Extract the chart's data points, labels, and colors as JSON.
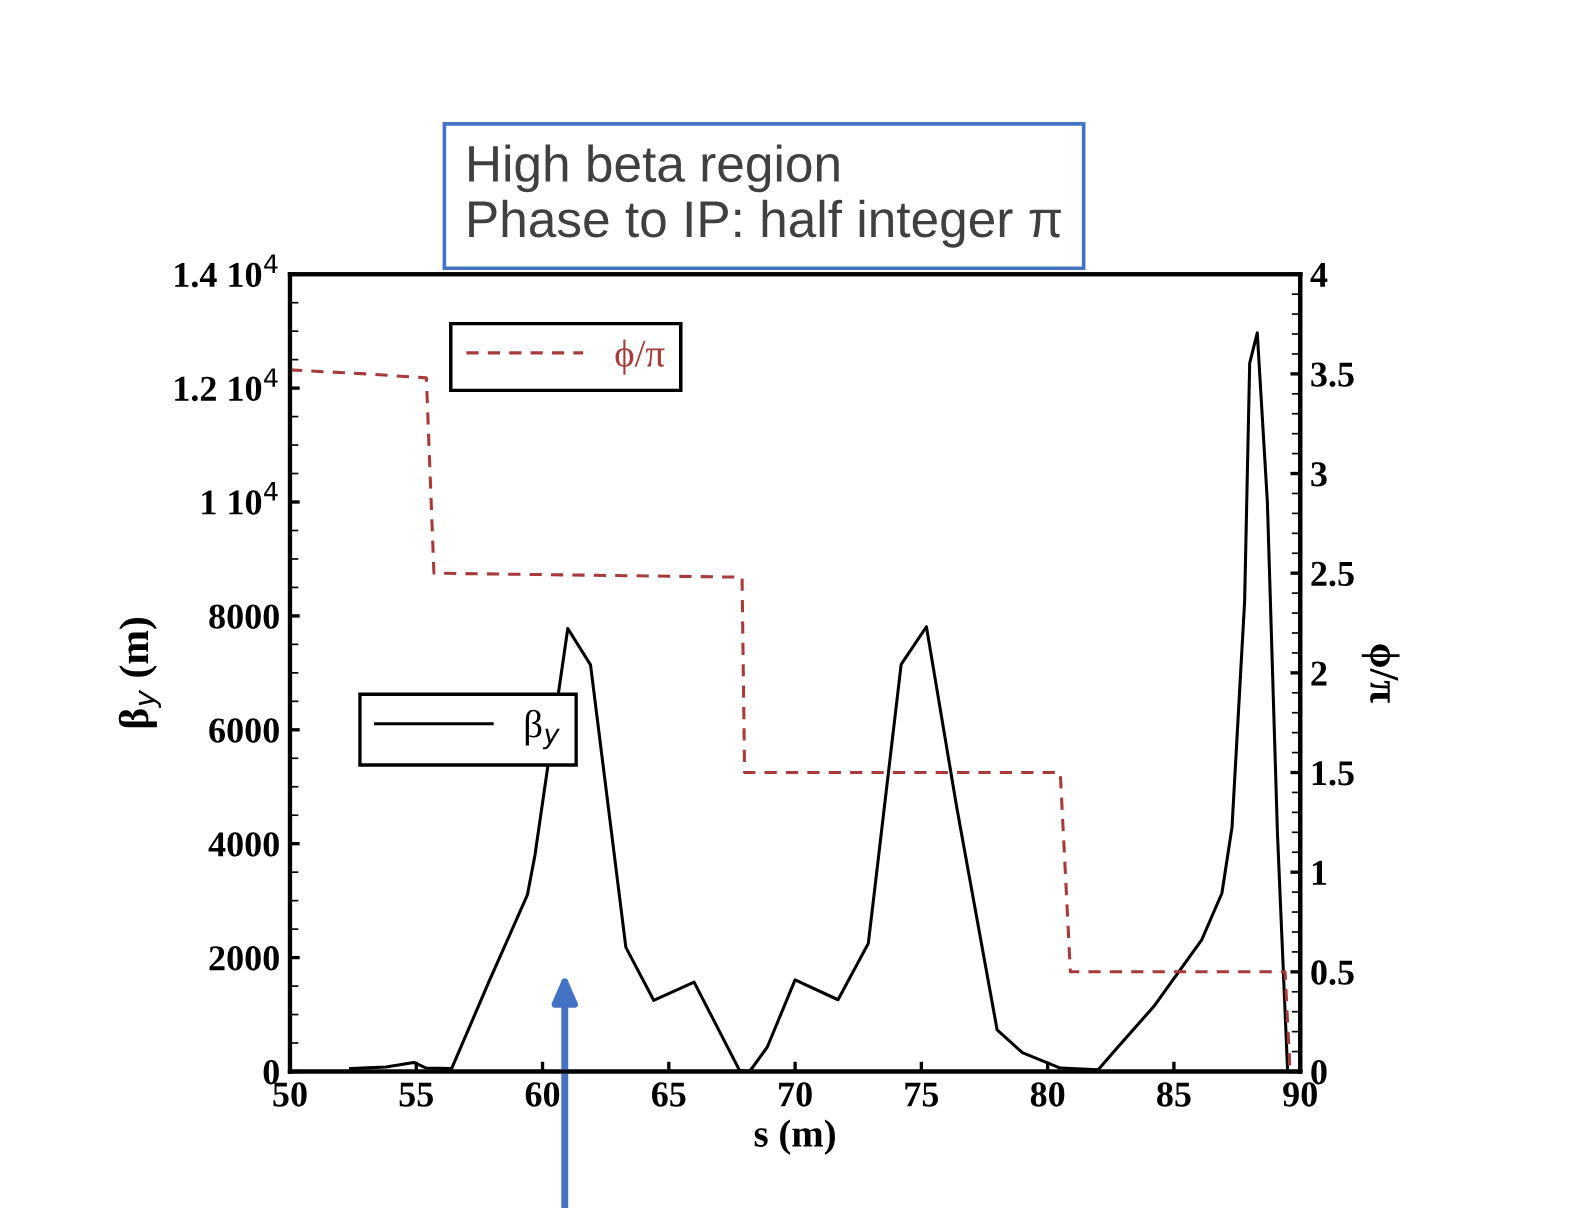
{
  "chart_data": {
    "type": "line",
    "xlabel": "s (m)",
    "ylabel": "β$_{y}$ (m)",
    "y2label": "ϕ/π",
    "xlim": [
      50,
      90
    ],
    "xticks": [
      50,
      55,
      60,
      65,
      70,
      75,
      80,
      85,
      90
    ],
    "ylim": [
      0,
      14000
    ],
    "yticks": [
      0,
      2000,
      4000,
      6000,
      8000,
      {
        "value": 10000,
        "label": "1 10$^{4}$"
      },
      {
        "value": 12000,
        "label": "1.2 10$^{4}$"
      },
      {
        "value": 14000,
        "label": "1.4 10$^{4}$"
      }
    ],
    "y2lim": [
      0,
      4
    ],
    "y2ticks": [
      0,
      0.5,
      1,
      1.5,
      2,
      2.5,
      3,
      3.5,
      4
    ],
    "grid": false,
    "legend": "left",
    "marker": "none",
    "series": [
      {
        "name": "β$_{y}$",
        "color": "#000000",
        "line_style": "solid",
        "x": [
          52.4,
          53.8,
          54.9,
          55.4,
          56.4,
          57.9,
          59.4,
          59.7,
          61.0,
          61.9,
          63.3,
          64.4,
          66.0,
          67.8,
          68.2,
          68.9,
          70.0,
          71.7,
          72.9,
          74.2,
          75.2,
          76.4,
          78.0,
          79.0,
          80.5,
          82.0,
          82.8,
          84.2,
          86.1,
          86.9,
          87.3,
          87.8,
          88.0,
          88.3,
          88.7,
          89.1,
          89.5
        ],
        "values": [
          50,
          80,
          160,
          60,
          50,
          1600,
          3100,
          3800,
          7780,
          7140,
          2180,
          1250,
          1570,
          20,
          0,
          430,
          1610,
          1260,
          2250,
          7150,
          7810,
          4640,
          730,
          330,
          60,
          30,
          440,
          1140,
          2310,
          3130,
          4290,
          8260,
          12440,
          12970,
          10000,
          4170,
          30
        ]
      },
      {
        "name": "ϕ/π",
        "color": "#a83a3a",
        "line_style": "dashed",
        "axis": "y2",
        "x": [
          50,
          53,
          55.4,
          55.7,
          67.9,
          68.0,
          80.5,
          80.9,
          89.4,
          89.6
        ],
        "values": [
          3.52,
          3.5,
          3.48,
          2.5,
          2.48,
          1.5,
          1.5,
          0.5,
          0.5,
          0
        ]
      }
    ],
    "annotations": [
      "High beta region\nPhase to IP: half integer π"
    ]
  }
}
